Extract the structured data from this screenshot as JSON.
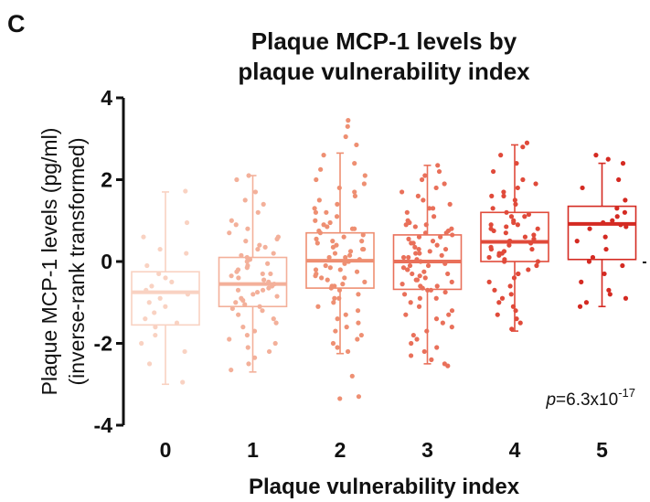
{
  "panel_label": "C",
  "chart_data": {
    "type": "box",
    "title_lines": [
      "Plaque MCP-1 levels by",
      "plaque vulnerability index"
    ],
    "ylabel_lines": [
      "Plaque MCP-1 levels (pg/ml)",
      "(inverse-rank transformed)"
    ],
    "xlabel": "Plaque vulnerability index",
    "categories": [
      "0",
      "1",
      "2",
      "3",
      "4",
      "5"
    ],
    "ylim": [
      -4,
      4
    ],
    "yticks": [
      4,
      2,
      0,
      -2,
      -4
    ],
    "colors": [
      "#f9d2c2",
      "#f3b09a",
      "#ee8f72",
      "#e9705a",
      "#e04a3a",
      "#d42a22"
    ],
    "boxes": [
      {
        "category": "0",
        "whisker_low": -3.0,
        "q1": -1.55,
        "median": -0.75,
        "q3": -0.25,
        "whisker_high": 1.7
      },
      {
        "category": "1",
        "whisker_low": -2.7,
        "q1": -1.1,
        "median": -0.55,
        "q3": 0.1,
        "whisker_high": 2.1
      },
      {
        "category": "2",
        "whisker_low": -2.25,
        "q1": -0.65,
        "median": 0.02,
        "q3": 0.7,
        "whisker_high": 2.65
      },
      {
        "category": "3",
        "whisker_low": -2.5,
        "q1": -0.68,
        "median": 0.0,
        "q3": 0.65,
        "whisker_high": 2.35
      },
      {
        "category": "4",
        "whisker_low": -1.7,
        "q1": 0.0,
        "median": 0.48,
        "q3": 1.2,
        "whisker_high": 2.85
      },
      {
        "category": "5",
        "whisker_low": -1.1,
        "q1": 0.05,
        "median": 0.92,
        "q3": 1.35,
        "whisker_high": 2.4
      }
    ],
    "points": [
      {
        "category": "0",
        "y": [
          1.72,
          0.95,
          0.6,
          0.3,
          0.2,
          -0.1,
          -0.3,
          -0.4,
          -0.5,
          -0.6,
          -0.7,
          -0.8,
          -0.9,
          -1.0,
          -1.1,
          -1.25,
          -1.4,
          -1.5,
          -1.6,
          -1.8,
          -2.0,
          -2.2,
          -2.5,
          -2.95
        ]
      },
      {
        "category": "1",
        "y": [
          2.1,
          2.0,
          1.7,
          1.5,
          1.4,
          1.2,
          1.0,
          0.9,
          0.8,
          0.7,
          0.6,
          0.5,
          0.4,
          0.3,
          0.2,
          0.15,
          0.1,
          0.05,
          0.0,
          -0.05,
          -0.1,
          -0.15,
          -0.2,
          -0.25,
          -0.3,
          -0.35,
          -0.4,
          -0.45,
          -0.5,
          -0.55,
          -0.6,
          -0.65,
          -0.7,
          -0.75,
          -0.8,
          -0.85,
          -0.9,
          -0.95,
          -1.0,
          -1.05,
          -1.1,
          -1.2,
          -1.3,
          -1.4,
          -1.5,
          -1.6,
          -1.7,
          -1.8,
          -1.9,
          -2.0,
          -2.1,
          -2.2,
          -2.35,
          -2.5,
          -2.65,
          0.35,
          -0.3,
          -0.7,
          0.55,
          -1.15
        ]
      },
      {
        "category": "2",
        "y": [
          3.45,
          3.3,
          3.05,
          2.85,
          2.6,
          2.4,
          2.25,
          2.1,
          2.0,
          1.9,
          1.8,
          1.7,
          1.6,
          1.5,
          1.4,
          1.3,
          1.2,
          1.1,
          1.0,
          0.95,
          0.9,
          0.85,
          0.8,
          0.75,
          0.7,
          0.65,
          0.6,
          0.55,
          0.5,
          0.45,
          0.4,
          0.35,
          0.3,
          0.25,
          0.2,
          0.15,
          0.1,
          0.05,
          0.0,
          -0.05,
          -0.1,
          -0.15,
          -0.2,
          -0.25,
          -0.3,
          -0.35,
          -0.4,
          -0.45,
          -0.5,
          -0.55,
          -0.6,
          -0.65,
          -0.7,
          -0.8,
          -0.9,
          -1.0,
          -1.1,
          -1.2,
          -1.3,
          -1.4,
          -1.5,
          -1.6,
          -1.7,
          -1.8,
          -1.9,
          -2.0,
          -2.1,
          -2.2,
          -2.8,
          -3.3,
          -3.35,
          0.3,
          -0.4,
          0.8,
          -0.9,
          1.2,
          0.5,
          -0.2,
          0.1,
          -0.6
        ]
      },
      {
        "category": "3",
        "y": [
          2.35,
          2.2,
          2.1,
          2.0,
          1.9,
          1.8,
          1.7,
          1.6,
          1.5,
          1.4,
          1.3,
          1.2,
          1.1,
          1.0,
          0.95,
          0.9,
          0.85,
          0.8,
          0.75,
          0.7,
          0.65,
          0.6,
          0.55,
          0.5,
          0.45,
          0.4,
          0.35,
          0.3,
          0.25,
          0.2,
          0.15,
          0.1,
          0.05,
          0.0,
          -0.05,
          -0.1,
          -0.15,
          -0.2,
          -0.25,
          -0.3,
          -0.35,
          -0.4,
          -0.45,
          -0.5,
          -0.55,
          -0.6,
          -0.65,
          -0.7,
          -0.75,
          -0.8,
          -0.9,
          -1.0,
          -1.1,
          -1.2,
          -1.3,
          -1.4,
          -1.5,
          -1.6,
          -1.7,
          -1.8,
          -1.9,
          -2.0,
          -2.1,
          -2.2,
          -2.3,
          -2.4,
          -2.5,
          -2.55,
          0.3,
          -0.3,
          0.6,
          -0.6,
          0.1,
          -0.1,
          0.9,
          -0.9,
          1.3,
          -1.3,
          0.45,
          -0.45,
          0.2,
          -0.2,
          0.7,
          -0.7
        ]
      },
      {
        "category": "4",
        "y": [
          2.9,
          2.8,
          2.6,
          2.4,
          2.2,
          2.0,
          1.9,
          1.8,
          1.7,
          1.6,
          1.5,
          1.4,
          1.3,
          1.2,
          1.15,
          1.1,
          1.0,
          0.95,
          0.9,
          0.85,
          0.8,
          0.75,
          0.7,
          0.65,
          0.6,
          0.55,
          0.5,
          0.45,
          0.4,
          0.35,
          0.3,
          0.25,
          0.2,
          0.15,
          0.1,
          0.05,
          0.0,
          -0.1,
          -0.2,
          -0.3,
          -0.4,
          -0.5,
          -0.6,
          -0.7,
          -0.8,
          -0.9,
          -1.0,
          -1.1,
          -1.2,
          -1.3,
          -1.4,
          -1.5,
          -1.65,
          0.3,
          0.8,
          1.1,
          0.5,
          0.0,
          -0.3,
          1.6,
          0.9,
          0.2
        ]
      },
      {
        "category": "5",
        "y": [
          2.6,
          2.5,
          2.4,
          2.0,
          1.8,
          1.5,
          1.3,
          1.2,
          1.1,
          1.0,
          0.95,
          0.9,
          0.85,
          0.8,
          0.6,
          0.5,
          0.3,
          0.1,
          0.0,
          -0.1,
          -0.3,
          -0.5,
          -0.7,
          -0.8,
          -0.9,
          -1.0,
          -1.1
        ]
      }
    ],
    "annotation": {
      "prefix": "p",
      "text": "=6.3x10",
      "exponent": "-17"
    },
    "grid": false,
    "legend": "none"
  }
}
